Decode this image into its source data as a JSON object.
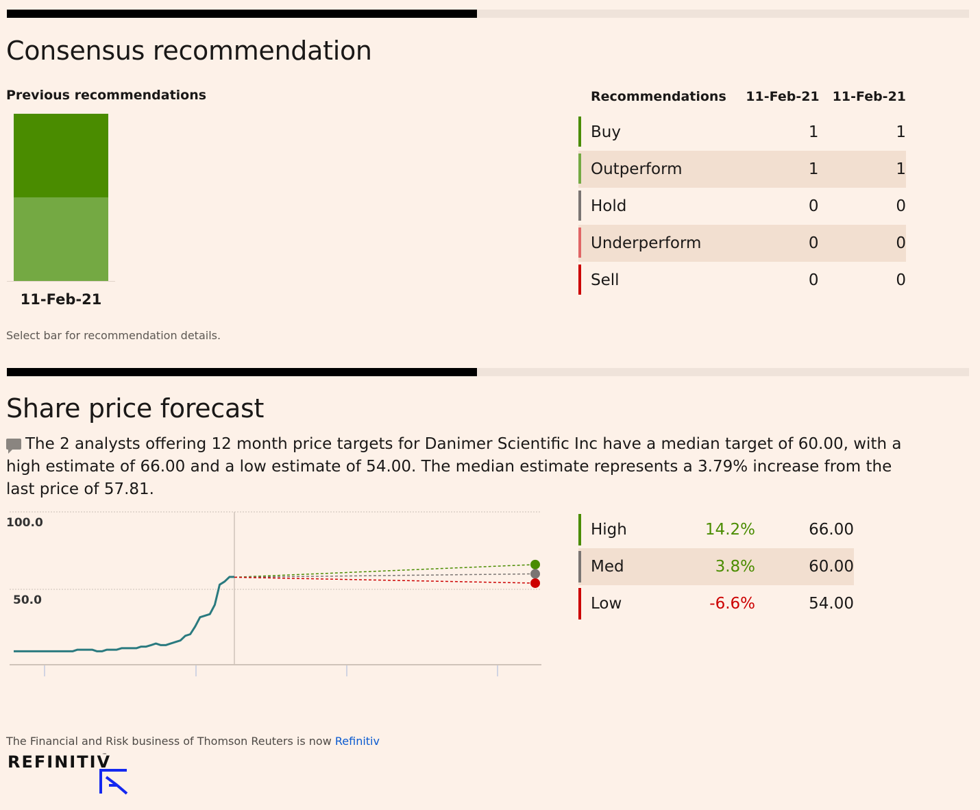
{
  "consensus": {
    "title": "Consensus recommendation",
    "previous_label": "Previous recommendations",
    "bar_date": "11-Feb-21",
    "hint": "Select bar for recommendation details.",
    "colors": {
      "buy": "#4a8c00",
      "outperform": "#74a943"
    },
    "table": {
      "headers": [
        "Recommendations",
        "11-Feb-21",
        "11-Feb-21"
      ],
      "rows": [
        {
          "label": "Buy",
          "a": "1",
          "b": "1",
          "color": "#4a8c00"
        },
        {
          "label": "Outperform",
          "a": "1",
          "b": "1",
          "color": "#74a943"
        },
        {
          "label": "Hold",
          "a": "0",
          "b": "0",
          "color": "#7a7573"
        },
        {
          "label": "Underperform",
          "a": "0",
          "b": "0",
          "color": "#e06666"
        },
        {
          "label": "Sell",
          "a": "0",
          "b": "0",
          "color": "#cc0000"
        }
      ]
    }
  },
  "forecast": {
    "title": "Share price forecast",
    "summary": "The 2 analysts offering 12 month price targets for Danimer Scientific Inc have a median target of 60.00, with a high estimate of 66.00 and a low estimate of 54.00. The median estimate represents a 3.79% increase from the last price of 57.81.",
    "icon": "speech-bubble-icon",
    "table": {
      "rows": [
        {
          "label": "High",
          "pct": "14.2%",
          "value": "66.00",
          "color": "#4a8c00",
          "pct_color": "#4a8c00"
        },
        {
          "label": "Med",
          "pct": "3.8%",
          "value": "60.00",
          "color": "#7a7573",
          "pct_color": "#4a8c00"
        },
        {
          "label": "Low",
          "pct": "-6.6%",
          "value": "54.00",
          "color": "#cc0000",
          "pct_color": "#cc0000"
        }
      ]
    }
  },
  "chart_data": {
    "type": "line",
    "yticks": [
      "100.0",
      "50.0"
    ],
    "ylim": [
      0,
      100
    ],
    "series": [
      {
        "values": [
          10,
          10,
          10,
          10,
          10,
          10,
          10,
          10,
          10,
          10,
          10,
          10,
          10,
          11,
          11,
          11,
          11,
          10,
          10,
          11,
          11,
          11,
          12,
          12,
          12,
          12,
          13,
          13,
          14,
          15,
          14,
          14,
          15,
          16,
          17,
          20,
          21,
          26,
          32,
          33,
          34,
          40,
          53,
          55,
          58,
          58
        ]
      }
    ],
    "forecast": {
      "last": 57.81,
      "high": 66.0,
      "med": 60.0,
      "low": 54.0
    },
    "colors": {
      "price": "#2a7a7f",
      "high": "#4a8c00",
      "med": "#7a7573",
      "low": "#cc0000"
    }
  },
  "footer": {
    "text": "The Financial and Risk business of Thomson Reuters is now ",
    "link": "Refinitiv",
    "logo": "REFINITIV",
    "tm": "™"
  }
}
